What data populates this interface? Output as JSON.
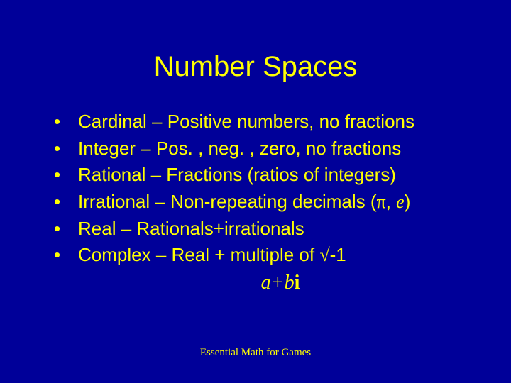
{
  "colors": {
    "background": "#000099",
    "text": "#ffff00"
  },
  "typography": {
    "title_fontsize": 40,
    "bullet_fontsize": 26,
    "formula_fontsize": 28,
    "footer_fontsize": 15,
    "body_font": "Arial",
    "formula_font": "Times New Roman"
  },
  "title": "Number Spaces",
  "bullets": [
    {
      "text": "Cardinal – Positive numbers, no fractions"
    },
    {
      "text": "Integer – Pos. , neg. , zero, no fractions"
    },
    {
      "text": "Rational – Fractions (ratios of integers)"
    },
    {
      "prefix": "Irrational – Non-repeating decimals (",
      "sym1": "π",
      "mid": ", ",
      "sym2": "e",
      "suffix": ")"
    },
    {
      "text": "Real – Rationals+irrationals"
    },
    {
      "prefix": "Complex – Real + multiple of ",
      "sym1": "√",
      "suffix": "-1"
    }
  ],
  "formula": {
    "a": "a",
    "plus": "+",
    "b": "b",
    "i": "i"
  },
  "footer": "Essential Math for Games"
}
